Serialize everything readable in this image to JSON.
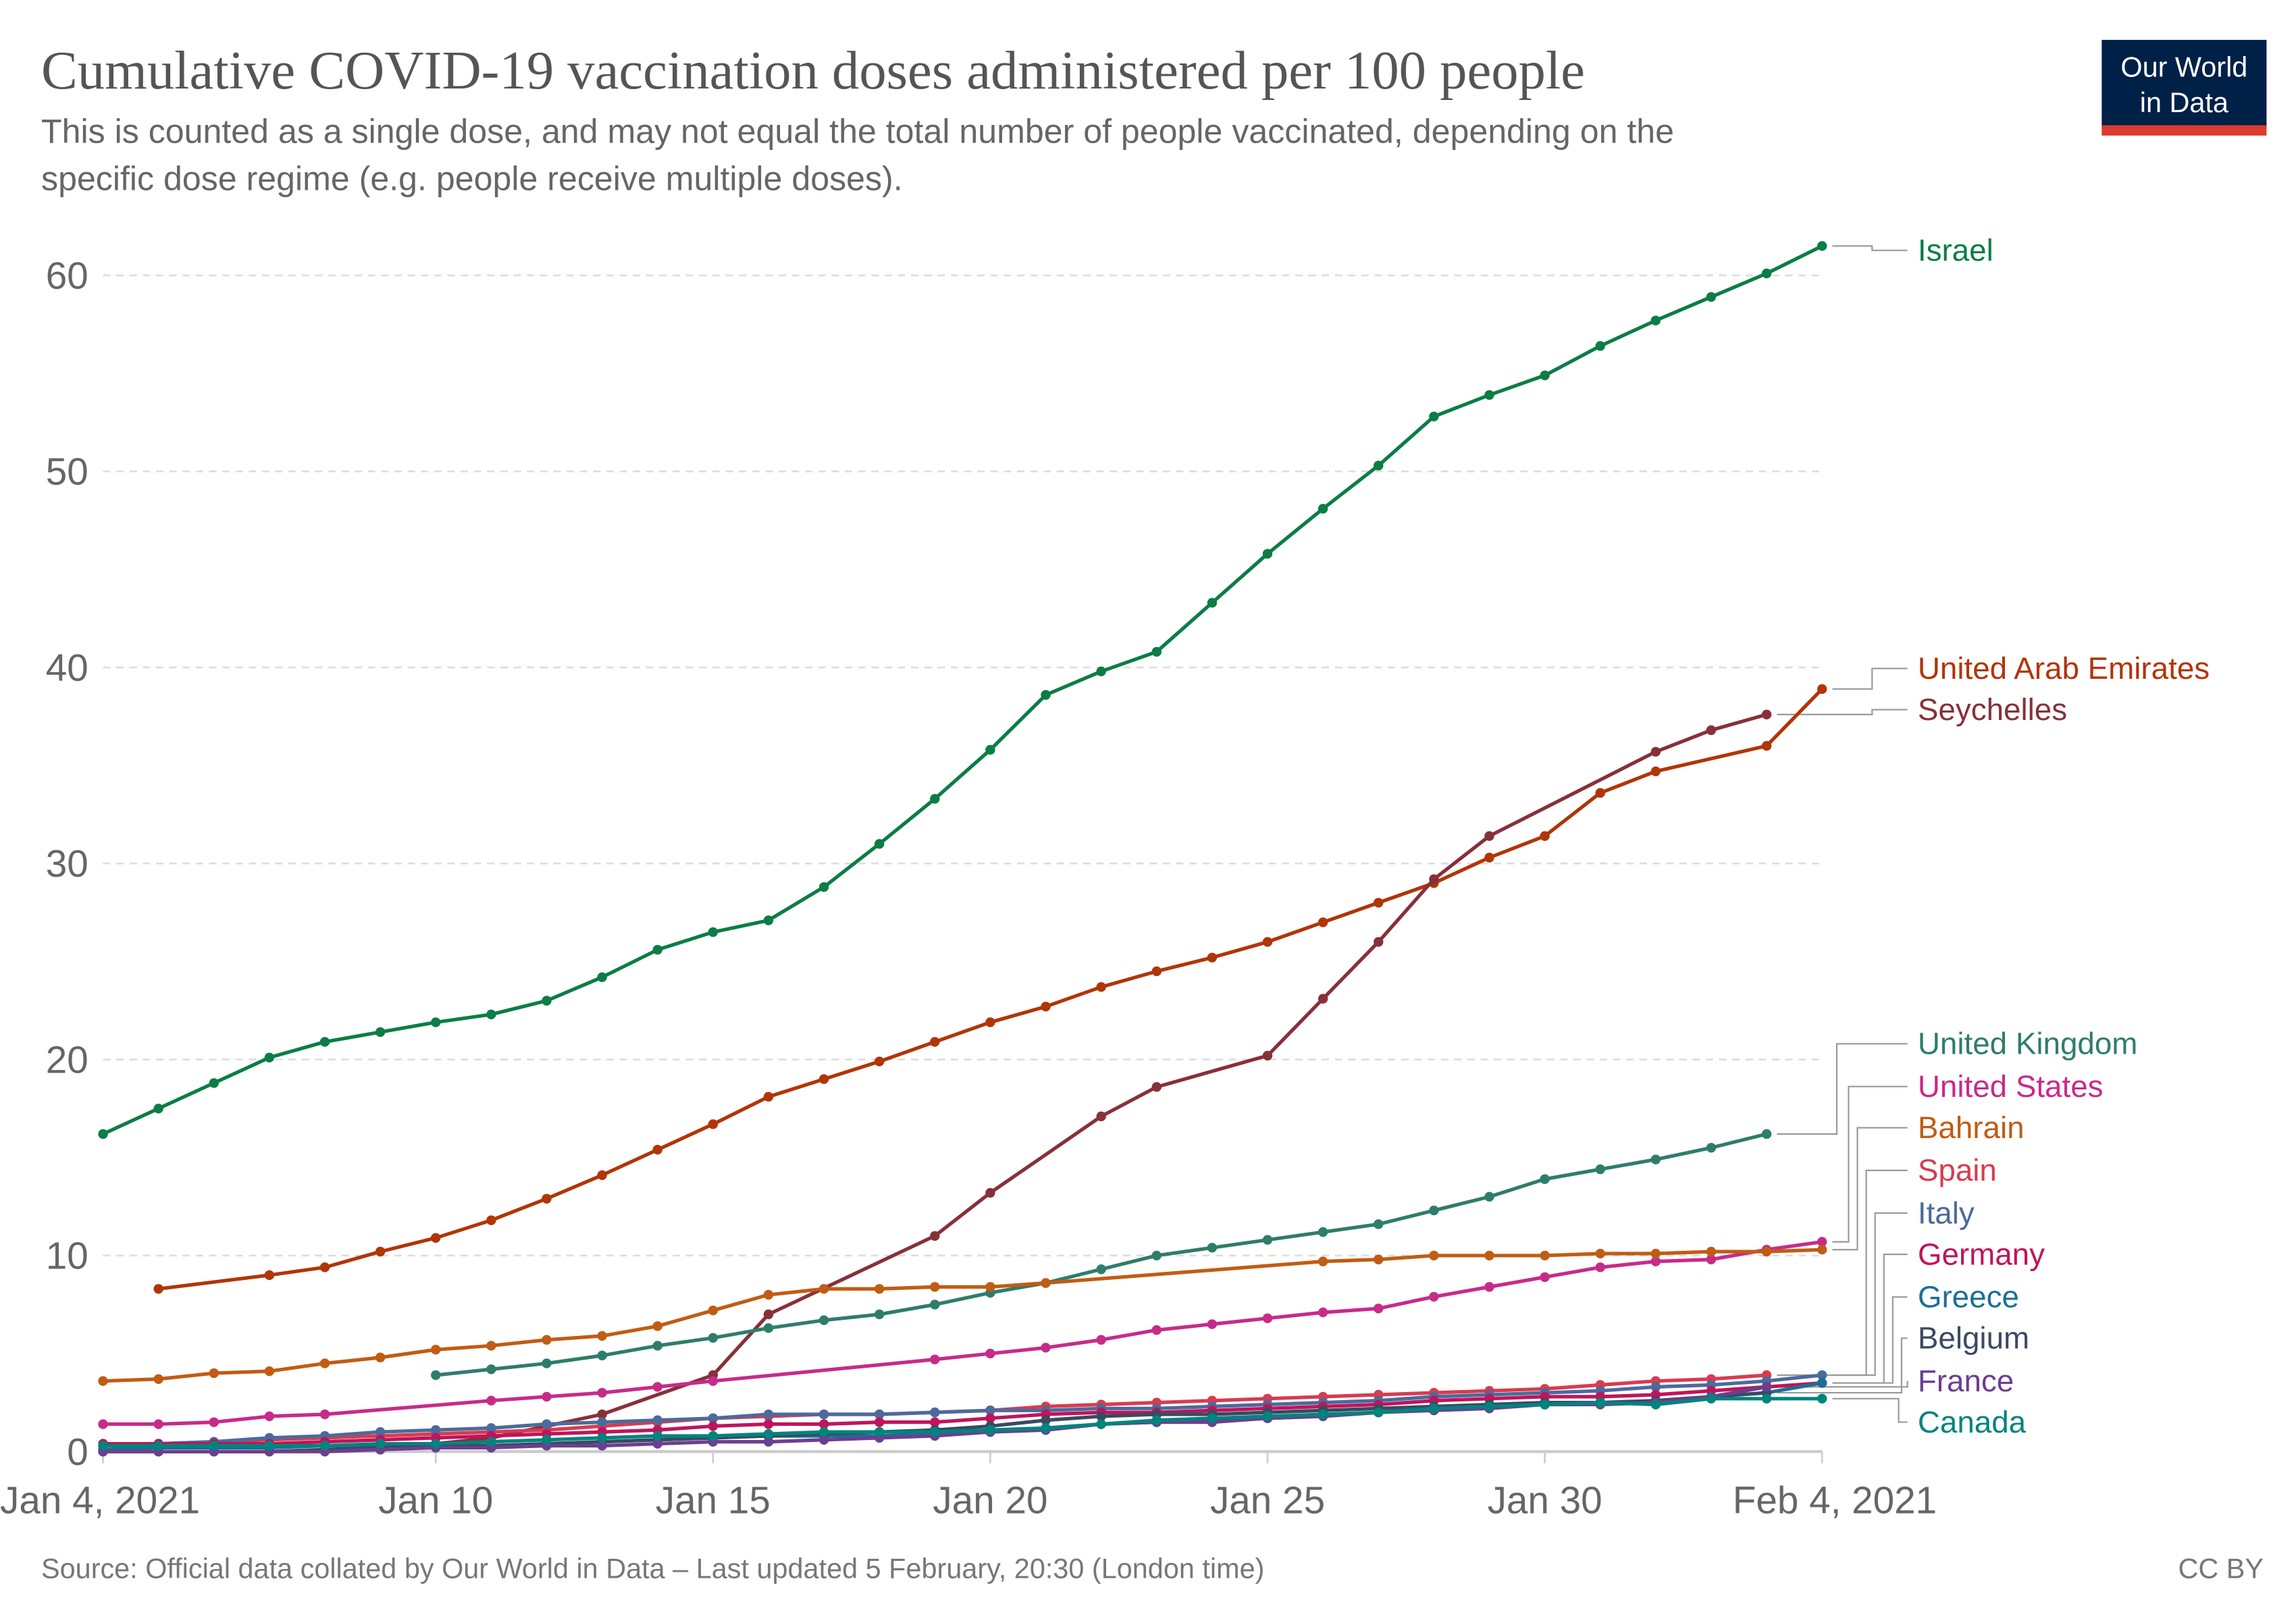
{
  "header": {
    "title": "Cumulative COVID-19 vaccination doses administered per 100 people",
    "subtitle_line1": "This is counted as a single dose, and may not equal the total number of people vaccinated, depending on the",
    "subtitle_line2": "specific dose regime (e.g. people receive multiple doses).",
    "logo_line1": "Our World",
    "logo_line2": "in Data",
    "logo_bg": "#002147",
    "logo_accent": "#dc3b2e"
  },
  "footer": {
    "source": "Source: Official data collated by Our World in Data – Last updated 5 February, 20:30 (London time)",
    "license": "CC BY"
  },
  "chart_data": {
    "type": "line",
    "title": "Cumulative COVID-19 vaccination doses administered per 100 people",
    "xlabel": "",
    "ylabel": "",
    "ylim": [
      0,
      60
    ],
    "yticks": [
      0,
      10,
      20,
      30,
      40,
      50,
      60
    ],
    "xticks": [
      {
        "date": "2021-01-04",
        "label": "Jan 4, 2021"
      },
      {
        "date": "2021-01-10",
        "label": "Jan 10"
      },
      {
        "date": "2021-01-15",
        "label": "Jan 15"
      },
      {
        "date": "2021-01-20",
        "label": "Jan 20"
      },
      {
        "date": "2021-01-25",
        "label": "Jan 25"
      },
      {
        "date": "2021-01-30",
        "label": "Jan 30"
      },
      {
        "date": "2021-02-04",
        "label": "Feb 4, 2021"
      }
    ],
    "grid": "horizontal dashed",
    "legend": "right, labels at line ends",
    "x": [
      "2021-01-04",
      "2021-01-05",
      "2021-01-06",
      "2021-01-07",
      "2021-01-08",
      "2021-01-09",
      "2021-01-10",
      "2021-01-11",
      "2021-01-12",
      "2021-01-13",
      "2021-01-14",
      "2021-01-15",
      "2021-01-16",
      "2021-01-17",
      "2021-01-18",
      "2021-01-19",
      "2021-01-20",
      "2021-01-21",
      "2021-01-22",
      "2021-01-23",
      "2021-01-24",
      "2021-01-25",
      "2021-01-26",
      "2021-01-27",
      "2021-01-28",
      "2021-01-29",
      "2021-01-30",
      "2021-01-31",
      "2021-02-01",
      "2021-02-02",
      "2021-02-03",
      "2021-02-04"
    ],
    "series": [
      {
        "name": "Israel",
        "color": "#0b7d45",
        "values": [
          16.2,
          17.5,
          18.8,
          20.1,
          20.9,
          21.4,
          21.9,
          22.3,
          23.0,
          24.2,
          25.6,
          26.5,
          27.1,
          28.8,
          31.0,
          33.3,
          35.8,
          38.6,
          39.8,
          40.8,
          43.3,
          45.8,
          48.1,
          50.3,
          52.8,
          53.9,
          54.9,
          56.4,
          57.7,
          58.9,
          60.1,
          61.5
        ]
      },
      {
        "name": "United Arab Emirates",
        "color": "#b13507",
        "values": [
          null,
          8.3,
          null,
          9.0,
          9.4,
          10.2,
          10.9,
          11.8,
          12.9,
          14.1,
          15.4,
          16.7,
          18.1,
          19.0,
          19.9,
          20.9,
          21.9,
          22.7,
          23.7,
          24.5,
          25.2,
          26.0,
          27.0,
          28.0,
          29.0,
          30.3,
          31.4,
          33.6,
          34.7,
          null,
          36.0,
          38.9
        ]
      },
      {
        "name": "Seychelles",
        "color": "#883039",
        "values": [
          null,
          null,
          null,
          null,
          null,
          0.1,
          0.4,
          0.7,
          1.3,
          1.9,
          null,
          3.9,
          7.0,
          null,
          null,
          11.0,
          13.2,
          null,
          17.1,
          18.6,
          null,
          20.2,
          23.1,
          26.0,
          29.2,
          31.4,
          null,
          null,
          35.7,
          36.8,
          37.6,
          null
        ]
      },
      {
        "name": "United Kingdom",
        "color": "#2e7d6b",
        "values": [
          null,
          null,
          null,
          null,
          null,
          null,
          3.9,
          4.2,
          4.5,
          4.9,
          5.4,
          5.8,
          6.3,
          6.7,
          7.0,
          7.5,
          8.1,
          8.6,
          9.3,
          10.0,
          10.4,
          10.8,
          11.2,
          11.6,
          12.3,
          13.0,
          13.9,
          14.4,
          14.9,
          15.5,
          16.2,
          null
        ]
      },
      {
        "name": "United States",
        "color": "#c72b8a",
        "values": [
          1.4,
          1.4,
          1.5,
          1.8,
          1.9,
          null,
          null,
          2.6,
          2.8,
          3.0,
          3.3,
          3.6,
          null,
          null,
          null,
          4.7,
          5.0,
          5.3,
          5.7,
          6.2,
          6.5,
          6.8,
          7.1,
          7.3,
          7.9,
          8.4,
          8.9,
          9.4,
          9.7,
          9.8,
          10.3,
          10.7
        ]
      },
      {
        "name": "Bahrain",
        "color": "#c15c13",
        "values": [
          3.6,
          3.7,
          4.0,
          4.1,
          4.5,
          4.8,
          5.2,
          5.4,
          5.7,
          5.9,
          6.4,
          7.2,
          8.0,
          8.3,
          8.3,
          8.4,
          8.4,
          8.6,
          null,
          null,
          null,
          null,
          9.7,
          9.8,
          10.0,
          10.0,
          10.0,
          10.1,
          10.1,
          10.2,
          10.2,
          10.3
        ]
      },
      {
        "name": "Spain",
        "color": "#d73c50",
        "values": [
          0.4,
          0.4,
          0.5,
          0.6,
          0.7,
          0.8,
          0.9,
          1.0,
          1.1,
          1.3,
          1.5,
          1.7,
          1.8,
          1.9,
          1.9,
          2.0,
          2.1,
          2.3,
          2.4,
          2.5,
          2.6,
          2.7,
          2.8,
          2.9,
          3.0,
          3.1,
          3.2,
          3.4,
          3.6,
          3.7,
          3.9,
          null
        ]
      },
      {
        "name": "Italy",
        "color": "#4c6a9c",
        "values": [
          0.3,
          0.4,
          0.5,
          0.7,
          0.8,
          1.0,
          1.1,
          1.2,
          1.4,
          1.5,
          1.6,
          1.7,
          1.9,
          1.9,
          1.9,
          2.0,
          2.1,
          2.1,
          2.2,
          2.2,
          2.3,
          2.4,
          2.5,
          2.6,
          2.8,
          2.9,
          3.0,
          3.1,
          3.3,
          3.4,
          3.6,
          3.9
        ]
      },
      {
        "name": "Germany",
        "color": "#c0145c",
        "values": [
          0.4,
          0.4,
          0.4,
          0.4,
          0.5,
          0.6,
          0.7,
          0.8,
          0.9,
          1.0,
          1.1,
          1.3,
          1.4,
          1.4,
          1.5,
          1.5,
          1.7,
          1.9,
          2.0,
          2.0,
          2.1,
          2.2,
          2.3,
          2.4,
          2.6,
          2.7,
          2.8,
          2.8,
          2.9,
          3.1,
          3.3,
          3.5
        ]
      },
      {
        "name": "Greece",
        "color": "#1a6f94",
        "values": [
          0.1,
          0.2,
          0.2,
          0.2,
          0.3,
          0.3,
          0.3,
          0.3,
          0.4,
          0.5,
          0.6,
          0.7,
          0.8,
          0.8,
          0.8,
          0.9,
          1.0,
          1.2,
          1.4,
          1.5,
          1.6,
          1.7,
          1.8,
          2.0,
          2.2,
          2.3,
          2.4,
          2.5,
          2.5,
          2.8,
          3.0,
          3.5
        ]
      },
      {
        "name": "Belgium",
        "color": "#3a4a62",
        "values": [
          0,
          0,
          0,
          0,
          0.1,
          0.2,
          0.3,
          0.3,
          0.4,
          0.5,
          0.6,
          0.7,
          0.8,
          0.9,
          1.0,
          1.1,
          1.3,
          1.6,
          1.8,
          1.9,
          1.9,
          2.0,
          2.1,
          2.2,
          2.3,
          2.4,
          2.5,
          2.5,
          2.6,
          2.8,
          3.0,
          null
        ]
      },
      {
        "name": "France",
        "color": "#6d3e91",
        "values": [
          0,
          0,
          0,
          0,
          0,
          0.1,
          0.2,
          0.2,
          0.3,
          0.3,
          0.4,
          0.5,
          0.5,
          0.6,
          0.7,
          0.8,
          1.0,
          1.1,
          1.4,
          1.5,
          1.5,
          1.7,
          1.8,
          2.0,
          2.1,
          2.2,
          2.4,
          2.4,
          2.5,
          2.8,
          3.3,
          null
        ]
      },
      {
        "name": "Canada",
        "color": "#00847e",
        "values": [
          0.3,
          0.3,
          0.3,
          0.3,
          0.3,
          0.4,
          0.4,
          0.5,
          0.6,
          0.7,
          0.8,
          0.8,
          0.9,
          1.0,
          1.0,
          1.0,
          1.1,
          1.2,
          1.4,
          1.6,
          1.7,
          1.8,
          1.9,
          2.0,
          2.2,
          2.3,
          2.4,
          2.5,
          2.4,
          2.7,
          2.7,
          2.7
        ]
      }
    ]
  }
}
